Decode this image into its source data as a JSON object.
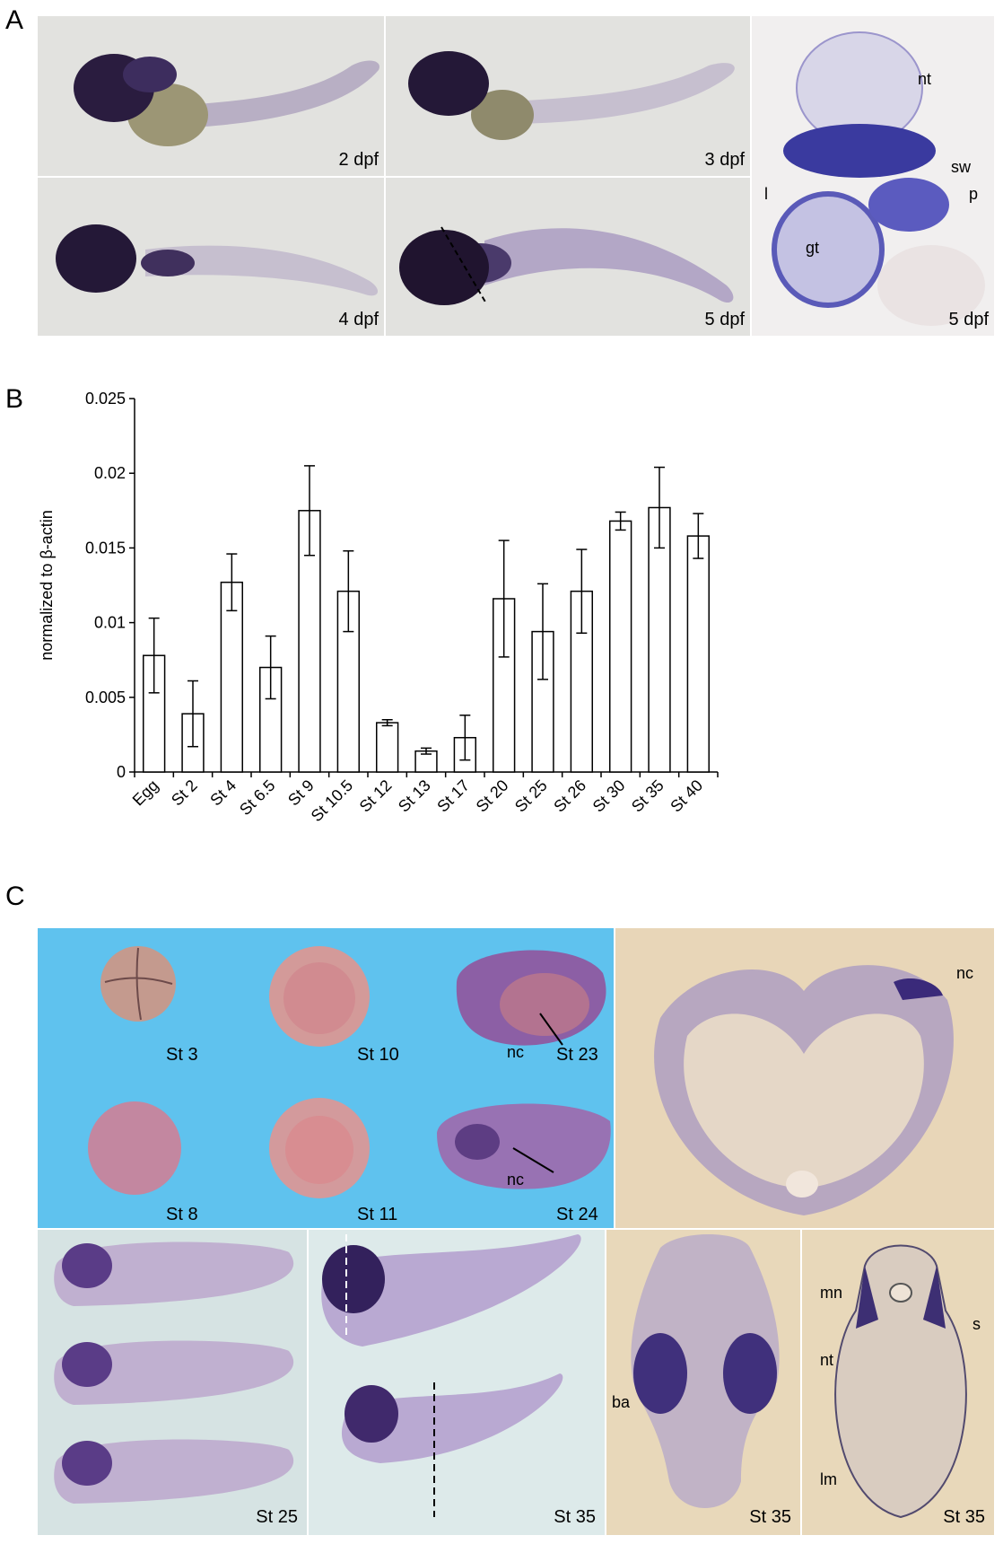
{
  "panels": {
    "a": "A",
    "b": "B",
    "c": "C"
  },
  "panel_a": {
    "tiles": [
      "2 dpf",
      "3 dpf",
      "4 dpf",
      "5 dpf",
      "5 dpf"
    ],
    "annotations": {
      "nt": "nt",
      "sw": "sw",
      "l": "l",
      "p": "p",
      "gt": "gt"
    }
  },
  "chart_data": {
    "type": "bar",
    "ylabel": "normalized to β-actin",
    "xlabel": "",
    "ylim": [
      0,
      0.025
    ],
    "yticks": [
      "0",
      "0.005",
      "0.01",
      "0.015",
      "0.02",
      "0.025"
    ],
    "ytick_values": [
      0,
      0.005,
      0.01,
      0.015,
      0.02,
      0.025
    ],
    "categories": [
      "Egg",
      "St 2",
      "St 4",
      "St 6.5",
      "St 9",
      "St 10.5",
      "St 12",
      "St 13",
      "St 17",
      "St 20",
      "St 25",
      "St 26",
      "St 30",
      "St 35",
      "St 40"
    ],
    "values": [
      0.0078,
      0.0039,
      0.0127,
      0.007,
      0.0175,
      0.0121,
      0.0033,
      0.0014,
      0.0023,
      0.0116,
      0.0094,
      0.0121,
      0.0168,
      0.0177,
      0.0158
    ],
    "errors": [
      0.0025,
      0.0022,
      0.0019,
      0.0021,
      0.003,
      0.0027,
      0.0002,
      0.0002,
      0.0015,
      0.0039,
      0.0032,
      0.0028,
      0.0006,
      0.0027,
      0.0015
    ],
    "grid": false,
    "bar_color": "#ffffff"
  },
  "panel_c": {
    "tiles": [
      "St 3",
      "St 10",
      "St 23",
      "St 8",
      "St 11",
      "St 24",
      "St 25",
      "St 35",
      "St 35",
      "St 35"
    ],
    "annotations": {
      "nc1": "nc",
      "nc2": "nc",
      "nc3": "nc",
      "ba": "ba",
      "mn": "mn",
      "s": "s",
      "nt": "nt",
      "lm": "lm"
    }
  },
  "colors": {
    "stain": "#3c2a73",
    "blue_bg": "#5fc2ee",
    "tan_bg": "#e8d6b8",
    "gray_bg": "#e3e3e1",
    "green_bg": "#d9e6e6"
  }
}
